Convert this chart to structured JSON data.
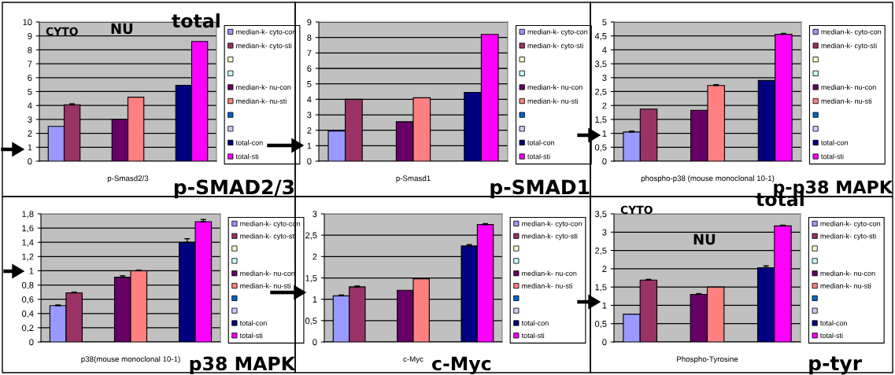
{
  "chart_data": [
    {
      "type": "bar",
      "categories": [
        null
      ],
      "xlabel": "p-Smasd2/3",
      "ylim": [
        0,
        10
      ],
      "yticks": [
        0,
        1,
        2,
        3,
        4,
        5,
        6,
        7,
        8,
        9,
        10
      ],
      "grid": "y",
      "legend": "right",
      "annotations": [
        "CYTO",
        "NU",
        "total",
        "p-SMAD2/3"
      ],
      "series": [
        {
          "name": "median-k- cyto-con",
          "color": "#9999ff",
          "values": [
            2.5
          ]
        },
        {
          "name": "median-k- cyto-sti",
          "color": "#993366",
          "values": [
            4.05
          ],
          "errors": [
            [
              4.05,
              4.12
            ]
          ]
        },
        {
          "color": "#ffffcc",
          "values": [
            null
          ]
        },
        {
          "color": "#ccffff",
          "values": [
            null
          ]
        },
        {
          "name": "median-k- nu-con",
          "color": "#660066",
          "values": [
            3.0
          ]
        },
        {
          "name": "median-k- nu-sti",
          "color": "#ff8080",
          "values": [
            4.6
          ]
        },
        {
          "color": "#0066cc",
          "values": [
            null
          ]
        },
        {
          "color": "#ccccff",
          "values": [
            null
          ]
        },
        {
          "name": "total-con",
          "color": "#000080",
          "values": [
            5.45
          ]
        },
        {
          "name": "total-sti",
          "color": "#ff00ff",
          "values": [
            8.6
          ]
        }
      ]
    },
    {
      "type": "bar",
      "categories": [
        null
      ],
      "xlabel": "p-Smasd1",
      "ylim": [
        0,
        9
      ],
      "yticks": [
        0,
        1,
        2,
        3,
        4,
        5,
        6,
        7,
        8,
        9
      ],
      "grid": "y",
      "legend": "right",
      "annotations": [
        "p-SMAD1"
      ],
      "series": [
        {
          "name": "median-k- cyto-con",
          "color": "#9999ff",
          "values": [
            1.95
          ]
        },
        {
          "name": "median-k- cyto-sti",
          "color": "#993366",
          "values": [
            4.0
          ]
        },
        {
          "color": "#ffffcc",
          "values": [
            null
          ]
        },
        {
          "color": "#ccffff",
          "values": [
            null
          ]
        },
        {
          "name": "median-k- nu-con",
          "color": "#660066",
          "values": [
            2.55
          ]
        },
        {
          "name": "median-k- nu-sti",
          "color": "#ff8080",
          "values": [
            4.1
          ]
        },
        {
          "color": "#0066cc",
          "values": [
            null
          ]
        },
        {
          "color": "#ccccff",
          "values": [
            null
          ]
        },
        {
          "name": "total-con",
          "color": "#000080",
          "values": [
            4.45
          ]
        },
        {
          "name": "total-sti",
          "color": "#ff00ff",
          "values": [
            8.2
          ]
        }
      ]
    },
    {
      "type": "bar",
      "categories": [
        null
      ],
      "xlabel": "phospho-p38 (mouse monoclonal 10-1)",
      "ylim": [
        0,
        5
      ],
      "yticks": [
        0,
        {
          "value": 0.5,
          "label": "0,5"
        },
        1,
        {
          "value": 1.5,
          "label": "1,5"
        },
        2,
        {
          "value": 2.5,
          "label": "2,5"
        },
        3,
        {
          "value": 3.5,
          "label": "3,5"
        },
        4,
        {
          "value": 4.5,
          "label": "4,5"
        },
        5
      ],
      "grid": "y",
      "legend": "right",
      "annotations": [
        "p-p38 MAPK"
      ],
      "series": [
        {
          "name": "median-k- cyto-con",
          "color": "#9999ff",
          "values": [
            1.05
          ],
          "errors": [
            [
              1.05,
              1.08
            ]
          ]
        },
        {
          "name": "median-k- cyto-sti",
          "color": "#993366",
          "values": [
            1.87
          ]
        },
        {
          "color": "#ffffcc",
          "values": [
            null
          ]
        },
        {
          "color": "#ccffff",
          "values": [
            null
          ]
        },
        {
          "name": "median-k- nu-con",
          "color": "#660066",
          "values": [
            1.83
          ]
        },
        {
          "name": "median-k- nu-sti",
          "color": "#ff8080",
          "values": [
            2.72
          ],
          "errors": [
            [
              2.72,
              2.75
            ]
          ]
        },
        {
          "color": "#0066cc",
          "values": [
            null
          ]
        },
        {
          "color": "#ccccff",
          "values": [
            null
          ]
        },
        {
          "name": "total-con",
          "color": "#000080",
          "values": [
            2.9
          ]
        },
        {
          "name": "total-sti",
          "color": "#ff00ff",
          "values": [
            4.56
          ],
          "errors": [
            [
              4.56,
              4.59
            ]
          ]
        }
      ]
    },
    {
      "type": "bar",
      "categories": [
        null
      ],
      "xlabel": "p38(mouse monoclonal 10-1)",
      "ylim": [
        0,
        1.8
      ],
      "yticks": [
        0,
        {
          "value": 0.2,
          "label": "0,2"
        },
        {
          "value": 0.4,
          "label": "0,4"
        },
        {
          "value": 0.6,
          "label": "0,6"
        },
        {
          "value": 0.8,
          "label": "0,8"
        },
        1,
        {
          "value": 1.2,
          "label": "1,2"
        },
        {
          "value": 1.4,
          "label": "1,4"
        },
        {
          "value": 1.6,
          "label": "1,6"
        },
        {
          "value": 1.8,
          "label": "1,8"
        }
      ],
      "grid": "y",
      "legend": "right",
      "annotations": [
        "p38 MAPK"
      ],
      "series": [
        {
          "name": "median-k- cyto-con",
          "color": "#9999ff",
          "values": [
            0.51
          ],
          "errors": [
            [
              0.51,
              0.52
            ]
          ]
        },
        {
          "name": "median-k- cyto-sti",
          "color": "#993366",
          "values": [
            0.69
          ],
          "errors": [
            [
              0.69,
              0.7
            ]
          ]
        },
        {
          "color": "#ffffcc",
          "values": [
            null
          ]
        },
        {
          "color": "#ccffff",
          "values": [
            null
          ]
        },
        {
          "name": "median-k- nu-con",
          "color": "#660066",
          "values": [
            0.91
          ],
          "errors": [
            [
              0.91,
              0.93
            ]
          ]
        },
        {
          "name": "median-k- nu-sti",
          "color": "#ff8080",
          "values": [
            1.0
          ],
          "errors": [
            [
              1.0,
              1.01
            ]
          ]
        },
        {
          "color": "#0066cc",
          "values": [
            null
          ]
        },
        {
          "color": "#ccccff",
          "values": [
            null
          ]
        },
        {
          "name": "total-con",
          "color": "#000080",
          "values": [
            1.4
          ],
          "errors": [
            [
              1.4,
              1.45
            ]
          ]
        },
        {
          "name": "total-sti",
          "color": "#ff00ff",
          "values": [
            1.69
          ],
          "errors": [
            [
              1.69,
              1.72
            ]
          ]
        }
      ]
    },
    {
      "type": "bar",
      "categories": [
        null
      ],
      "xlabel": "c-Myc",
      "ylim": [
        0,
        3
      ],
      "yticks": [
        0,
        {
          "value": 0.5,
          "label": "0,5"
        },
        1,
        {
          "value": 1.5,
          "label": "1,5"
        },
        2,
        {
          "value": 2.5,
          "label": "2,5"
        },
        3
      ],
      "grid": "y",
      "legend": "right",
      "annotations": [
        "c-Myc"
      ],
      "series": [
        {
          "name": "median-k- cyto-con",
          "color": "#9999ff",
          "values": [
            1.08
          ],
          "errors": [
            [
              1.08,
              1.1
            ]
          ]
        },
        {
          "name": "median-k- cyto-sti",
          "color": "#993366",
          "values": [
            1.29
          ],
          "errors": [
            [
              1.29,
              1.31
            ]
          ]
        },
        {
          "color": "#ffffcc",
          "values": [
            null
          ]
        },
        {
          "color": "#ccffff",
          "values": [
            null
          ]
        },
        {
          "name": "median-k- nu-con",
          "color": "#660066",
          "values": [
            1.21
          ]
        },
        {
          "name": "median-k- nu-sti",
          "color": "#ff8080",
          "values": [
            1.48
          ]
        },
        {
          "color": "#0066cc",
          "values": [
            null
          ]
        },
        {
          "color": "#ccccff",
          "values": [
            null
          ]
        },
        {
          "name": "total-con",
          "color": "#000080",
          "values": [
            2.25
          ],
          "errors": [
            [
              2.25,
              2.28
            ]
          ]
        },
        {
          "name": "total-sti",
          "color": "#ff00ff",
          "values": [
            2.75
          ],
          "errors": [
            [
              2.75,
              2.77
            ]
          ]
        }
      ]
    },
    {
      "type": "bar",
      "categories": [
        null
      ],
      "xlabel": "Phospho-Tyrosine",
      "ylim": [
        0,
        3.5
      ],
      "yticks": [
        0,
        {
          "value": 0.5,
          "label": "0,5"
        },
        1,
        {
          "value": 1.5,
          "label": "1,5"
        },
        2,
        {
          "value": 2.5,
          "label": "2,5"
        },
        3,
        {
          "value": 3.5,
          "label": "3,5"
        }
      ],
      "grid": "y",
      "legend": "right",
      "annotations": [
        "CYTO",
        "NU",
        "total",
        "p-tyr"
      ],
      "series": [
        {
          "name": "median-k- cyto-con",
          "color": "#9999ff",
          "values": [
            0.76
          ]
        },
        {
          "name": "median-k- cyto-sti",
          "color": "#993366",
          "values": [
            1.69
          ],
          "errors": [
            [
              1.69,
              1.71
            ]
          ]
        },
        {
          "color": "#ffffcc",
          "values": [
            null
          ]
        },
        {
          "color": "#ccffff",
          "values": [
            null
          ]
        },
        {
          "name": "median-k- nu-con",
          "color": "#660066",
          "values": [
            1.3
          ],
          "errors": [
            [
              1.3,
              1.32
            ]
          ]
        },
        {
          "name": "median-k- nu-sti",
          "color": "#ff8080",
          "values": [
            1.5
          ]
        },
        {
          "color": "#0066cc",
          "values": [
            null
          ]
        },
        {
          "color": "#ccccff",
          "values": [
            null
          ]
        },
        {
          "name": "total-con",
          "color": "#000080",
          "values": [
            2.03
          ],
          "errors": [
            [
              2.03,
              2.08
            ]
          ]
        },
        {
          "name": "total-sti",
          "color": "#ff00ff",
          "values": [
            3.17
          ],
          "errors": [
            [
              3.17,
              3.19
            ]
          ]
        }
      ]
    }
  ]
}
